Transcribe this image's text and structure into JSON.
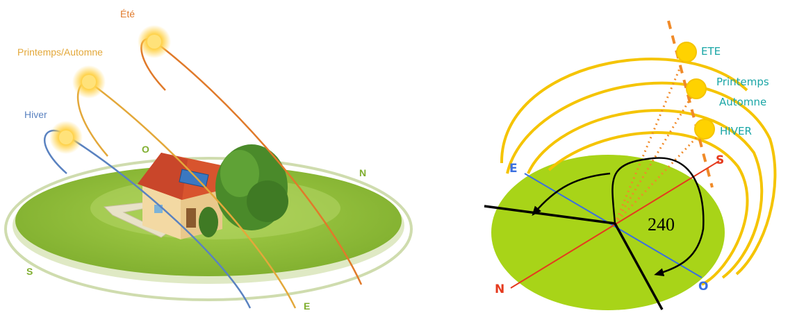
{
  "left_diagram": {
    "seasons": {
      "summer": "Été",
      "spring_autumn": "Printemps/Automne",
      "winter": "Hiver"
    },
    "directions": {
      "west": "O",
      "north": "N",
      "south": "S",
      "east": "E"
    },
    "colors": {
      "summer": "#e07a2a",
      "spring_autumn": "#e3a83a",
      "winter": "#5a82c0",
      "lawn": "#8fbf3a",
      "ring": "#d8e3b6"
    }
  },
  "right_diagram": {
    "seasons": {
      "summer": "ETE",
      "spring_line1": "Printemps",
      "spring_line2": "Automne",
      "winter": "HIVER"
    },
    "directions": {
      "east": "E",
      "south": "S",
      "north": "N",
      "west": "O"
    },
    "angle_label": "240",
    "colors": {
      "ground": "#a8d418",
      "arc": "#f5c400",
      "sun": "#ffd200",
      "ns_axis": "#e53a1e",
      "eo_axis": "#3a6fe0",
      "season_text": "#1aa6a6"
    }
  }
}
